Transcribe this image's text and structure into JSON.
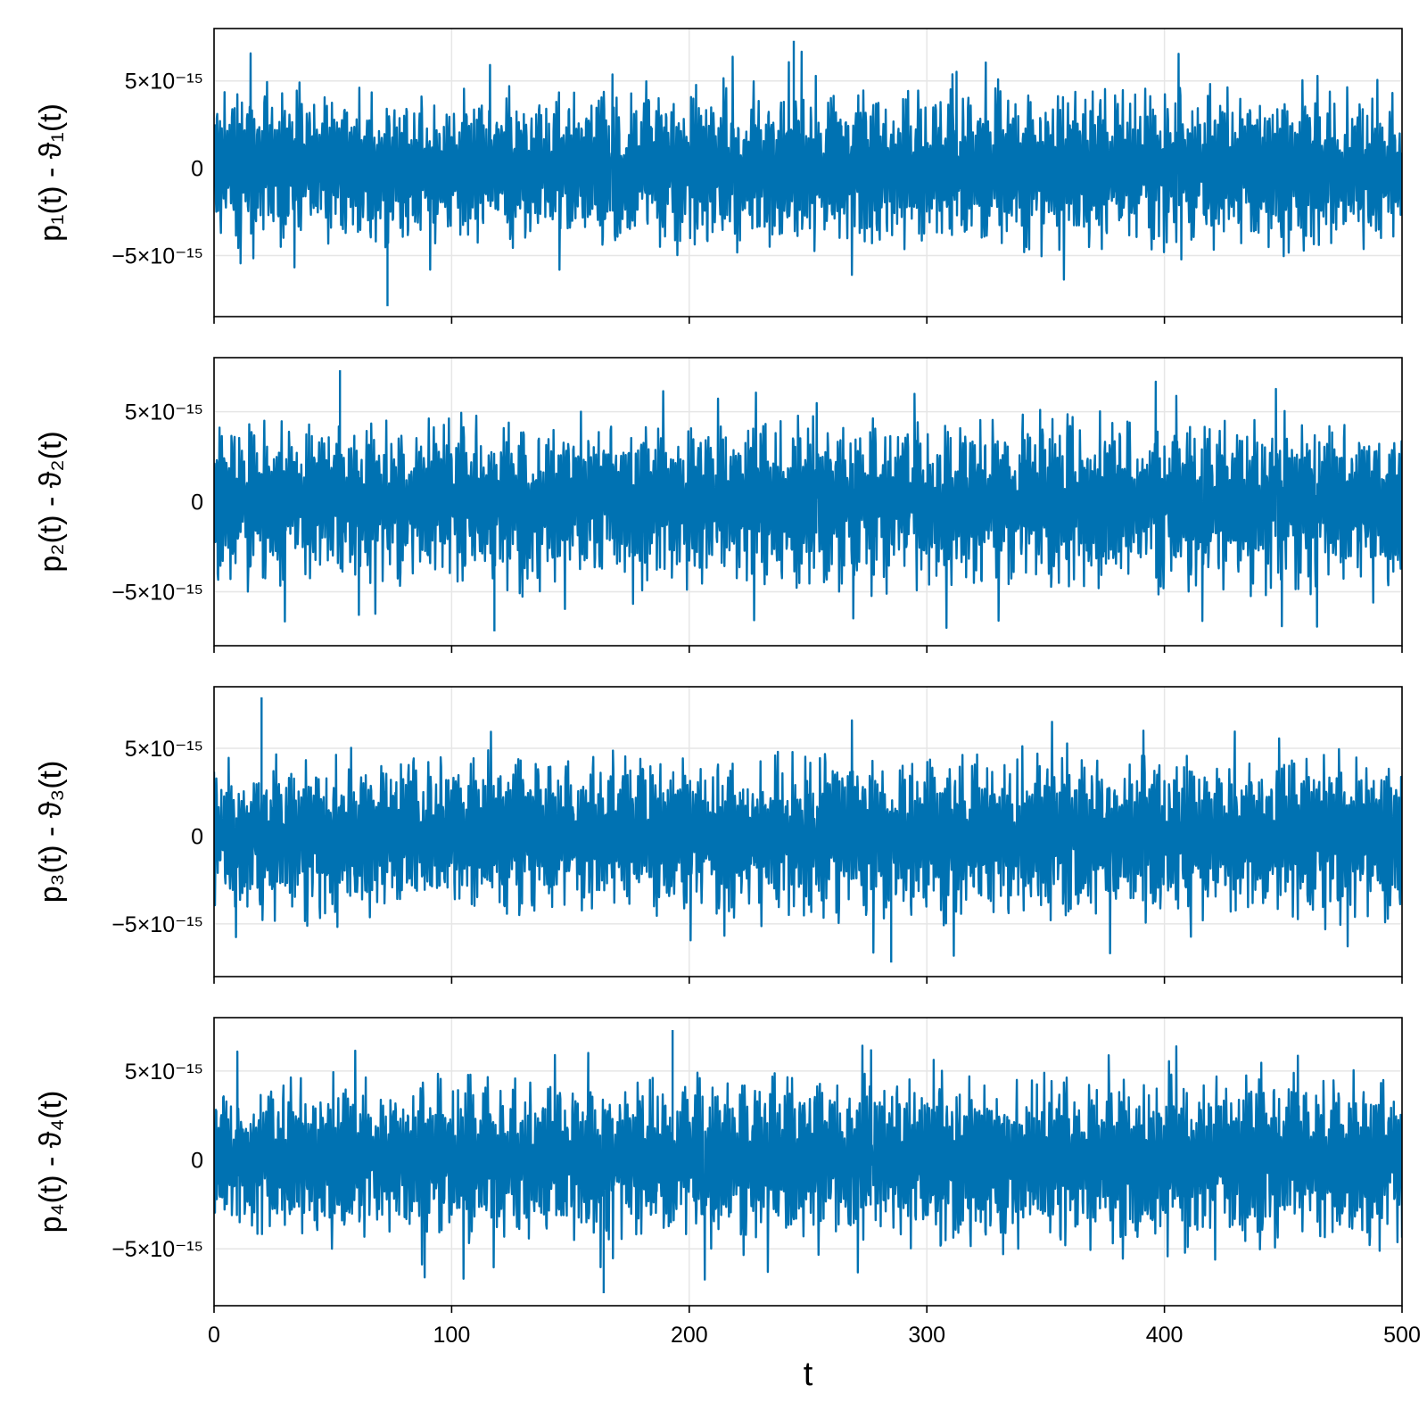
{
  "chart_data": [
    {
      "type": "line",
      "ylabel": "p₁(t) - ϑ₁(t)",
      "xlabel": "",
      "xlim": [
        0,
        500
      ],
      "ylim": [
        -8.5e-15,
        8e-15
      ],
      "yticks": [
        -5e-15,
        0,
        5e-15
      ],
      "ytick_labels": [
        "−5×10⁻¹⁵",
        "0",
        "5×10⁻¹⁵"
      ],
      "xticks": [
        0,
        100,
        200,
        300,
        400,
        500
      ],
      "xtick_labels": [
        "",
        "",
        "",
        "",
        "",
        ""
      ],
      "grid": true,
      "series": [
        {
          "color": "#0072b2",
          "envelope_x": [
            0,
            25,
            50,
            75,
            100,
            125,
            150,
            175,
            200,
            225,
            250,
            275,
            300,
            325,
            350,
            375,
            400,
            425,
            450,
            475,
            500
          ],
          "envelope_upper": [
            5e-15,
            5.6e-15,
            4.8e-15,
            5.3e-15,
            4.9e-15,
            5.2e-15,
            5e-15,
            5.1e-15,
            5.4e-15,
            5.3e-15,
            5.8e-15,
            5.1e-15,
            5e-15,
            5.2e-15,
            5.3e-15,
            5.6e-15,
            5.2e-15,
            5.5e-15,
            5.4e-15,
            5.7e-15,
            5.3e-15
          ],
          "envelope_lower": [
            -4.9e-15,
            -5.5e-15,
            -4.8e-15,
            -5.6e-15,
            -5e-15,
            -5.1e-15,
            -4.9e-15,
            -5e-15,
            -5.2e-15,
            -5e-15,
            -5.3e-15,
            -5.6e-15,
            -5.4e-15,
            -5.5e-15,
            -5.4e-15,
            -5.6e-15,
            -5.4e-15,
            -5.5e-15,
            -5.6e-15,
            -5.5e-15,
            -5.6e-15
          ],
          "max_point": [
            244,
            7.3e-15
          ],
          "min_point": [
            73,
            -7.9e-15
          ]
        }
      ]
    },
    {
      "type": "line",
      "ylabel": "p₂(t) - ϑ₂(t)",
      "xlabel": "",
      "xlim": [
        0,
        500
      ],
      "ylim": [
        -8e-15,
        8e-15
      ],
      "yticks": [
        -5e-15,
        0,
        5e-15
      ],
      "ytick_labels": [
        "−5×10⁻¹⁵",
        "0",
        "5×10⁻¹⁵"
      ],
      "xticks": [
        0,
        100,
        200,
        300,
        400,
        500
      ],
      "xtick_labels": [
        "",
        "",
        "",
        "",
        "",
        ""
      ],
      "grid": true,
      "series": [
        {
          "color": "#0072b2",
          "envelope_x": [
            0,
            25,
            50,
            75,
            100,
            125,
            150,
            175,
            200,
            225,
            250,
            275,
            300,
            325,
            350,
            375,
            400,
            425,
            450,
            475,
            500
          ],
          "envelope_upper": [
            4.8e-15,
            5.6e-15,
            5.4e-15,
            5e-15,
            5.1e-15,
            5e-15,
            5.3e-15,
            5.2e-15,
            5e-15,
            5.1e-15,
            5e-15,
            5e-15,
            5.2e-15,
            5.4e-15,
            5.5e-15,
            5.3e-15,
            5.6e-15,
            5e-15,
            5.4e-15,
            5.6e-15,
            4.9e-15
          ],
          "envelope_lower": [
            -5e-15,
            -5.4e-15,
            -5.2e-15,
            -5e-15,
            -5.3e-15,
            -6e-15,
            -5.1e-15,
            -5.2e-15,
            -5.4e-15,
            -5.3e-15,
            -5.6e-15,
            -5.5e-15,
            -5.7e-15,
            -5.6e-15,
            -6e-15,
            -5.7e-15,
            -6e-15,
            -5.5e-15,
            -5.6e-15,
            -6.1e-15,
            -5.8e-15
          ],
          "max_point": [
            53,
            7.3e-15
          ],
          "min_point": [
            118,
            -7.2e-15
          ]
        }
      ]
    },
    {
      "type": "line",
      "ylabel": "p₃(t) - ϑ₃(t)",
      "xlabel": "",
      "xlim": [
        0,
        500
      ],
      "ylim": [
        -8e-15,
        8.5e-15
      ],
      "yticks": [
        -5e-15,
        0,
        5e-15
      ],
      "ytick_labels": [
        "−5×10⁻¹⁵",
        "0",
        "5×10⁻¹⁵"
      ],
      "xticks": [
        0,
        100,
        200,
        300,
        400,
        500
      ],
      "xtick_labels": [
        "",
        "",
        "",
        "",
        "",
        ""
      ],
      "grid": true,
      "series": [
        {
          "color": "#0072b2",
          "envelope_x": [
            0,
            25,
            50,
            75,
            100,
            125,
            150,
            175,
            200,
            225,
            250,
            275,
            300,
            325,
            350,
            375,
            400,
            425,
            450,
            475,
            500
          ],
          "envelope_upper": [
            4.8e-15,
            5.6e-15,
            5.2e-15,
            5.3e-15,
            5.2e-15,
            5e-15,
            5.1e-15,
            5.6e-15,
            5e-15,
            5.1e-15,
            5.5e-15,
            5.4e-15,
            5e-15,
            5.4e-15,
            5.6e-15,
            5.2e-15,
            5.4e-15,
            5.3e-15,
            5.6e-15,
            5.2e-15,
            5e-15
          ],
          "envelope_lower": [
            -4.9e-15,
            -5.6e-15,
            -5.4e-15,
            -5.2e-15,
            -5e-15,
            -5.3e-15,
            -5e-15,
            -4.8e-15,
            -5.1e-15,
            -5.2e-15,
            -5.5e-15,
            -5.6e-15,
            -5.4e-15,
            -5.6e-15,
            -5.7e-15,
            -5.6e-15,
            -5.5e-15,
            -5.4e-15,
            -5.6e-15,
            -5.5e-15,
            -5.3e-15
          ],
          "max_point": [
            20,
            7.9e-15
          ],
          "min_point": [
            285,
            -7.2e-15
          ]
        }
      ]
    },
    {
      "type": "line",
      "ylabel": "p₄(t) - ϑ₄(t)",
      "xlabel": "t",
      "xlim": [
        0,
        500
      ],
      "ylim": [
        -8.2e-15,
        8e-15
      ],
      "yticks": [
        -5e-15,
        0,
        5e-15
      ],
      "ytick_labels": [
        "−5×10⁻¹⁵",
        "0",
        "5×10⁻¹⁵"
      ],
      "xticks": [
        0,
        100,
        200,
        300,
        400,
        500
      ],
      "xtick_labels": [
        "0",
        "100",
        "200",
        "300",
        "400",
        "500"
      ],
      "grid": true,
      "series": [
        {
          "color": "#0072b2",
          "envelope_x": [
            0,
            25,
            50,
            75,
            100,
            125,
            150,
            175,
            200,
            225,
            250,
            275,
            300,
            325,
            350,
            375,
            400,
            425,
            450,
            475,
            500
          ],
          "envelope_upper": [
            4.9e-15,
            5.4e-15,
            5.2e-15,
            5e-15,
            5.6e-15,
            5e-15,
            5.2e-15,
            5e-15,
            5.3e-15,
            5.4e-15,
            5.5e-15,
            5.2e-15,
            5e-15,
            5.3e-15,
            5.6e-15,
            5.4e-15,
            5.7e-15,
            5.3e-15,
            5.6e-15,
            5.4e-15,
            4.9e-15
          ],
          "envelope_lower": [
            -5.2e-15,
            -5.6e-15,
            -5.4e-15,
            -5.2e-15,
            -5.4e-15,
            -5.6e-15,
            -5.3e-15,
            -5.2e-15,
            -5.4e-15,
            -5.5e-15,
            -5.6e-15,
            -5.2e-15,
            -5.8e-15,
            -5.6e-15,
            -5.5e-15,
            -5.7e-15,
            -6e-15,
            -5.7e-15,
            -6.1e-15,
            -5.9e-15,
            -5.8e-15
          ],
          "max_point": [
            193,
            7.3e-15
          ],
          "min_point": [
            164,
            -7.5e-15
          ]
        }
      ]
    }
  ]
}
